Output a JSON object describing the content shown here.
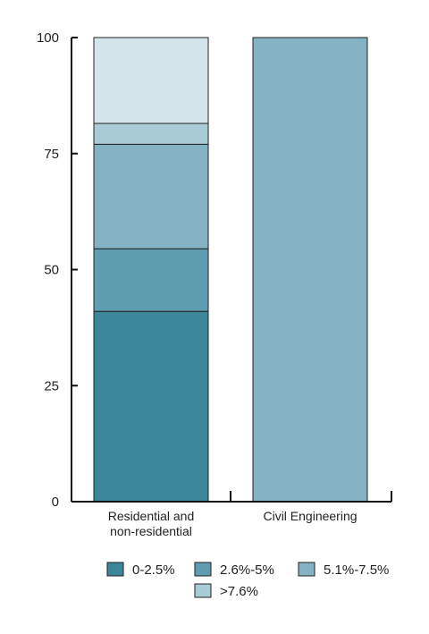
{
  "chart_data": {
    "type": "bar",
    "stacked": true,
    "categories": [
      "Residential and non-residential",
      "Civil Engineering"
    ],
    "category_label_lines": [
      [
        "Residential and",
        "non-residential"
      ],
      [
        "Civil Engineering"
      ]
    ],
    "series": [
      {
        "name": "0-2.5%",
        "color": "#3b8699",
        "values": [
          41,
          0
        ]
      },
      {
        "name": "2.6%-5%",
        "color": "#5f9eb0",
        "values": [
          13.5,
          0
        ]
      },
      {
        "name": "5.1%-7.5%",
        "color": "#85b3c4",
        "values": [
          22.5,
          100
        ]
      },
      {
        "name": ">7.6%",
        "color": "#a9cbd6",
        "values": [
          4.5,
          0
        ]
      },
      {
        "name": "",
        "color": "#d4e5eb",
        "values": [
          18.5,
          0
        ]
      }
    ],
    "yticks": [
      0,
      25,
      50,
      75,
      100
    ],
    "ylim": [
      0,
      100
    ],
    "title": "",
    "xlabel": "",
    "ylabel": "",
    "grid": false,
    "legend_position": "bottom"
  }
}
